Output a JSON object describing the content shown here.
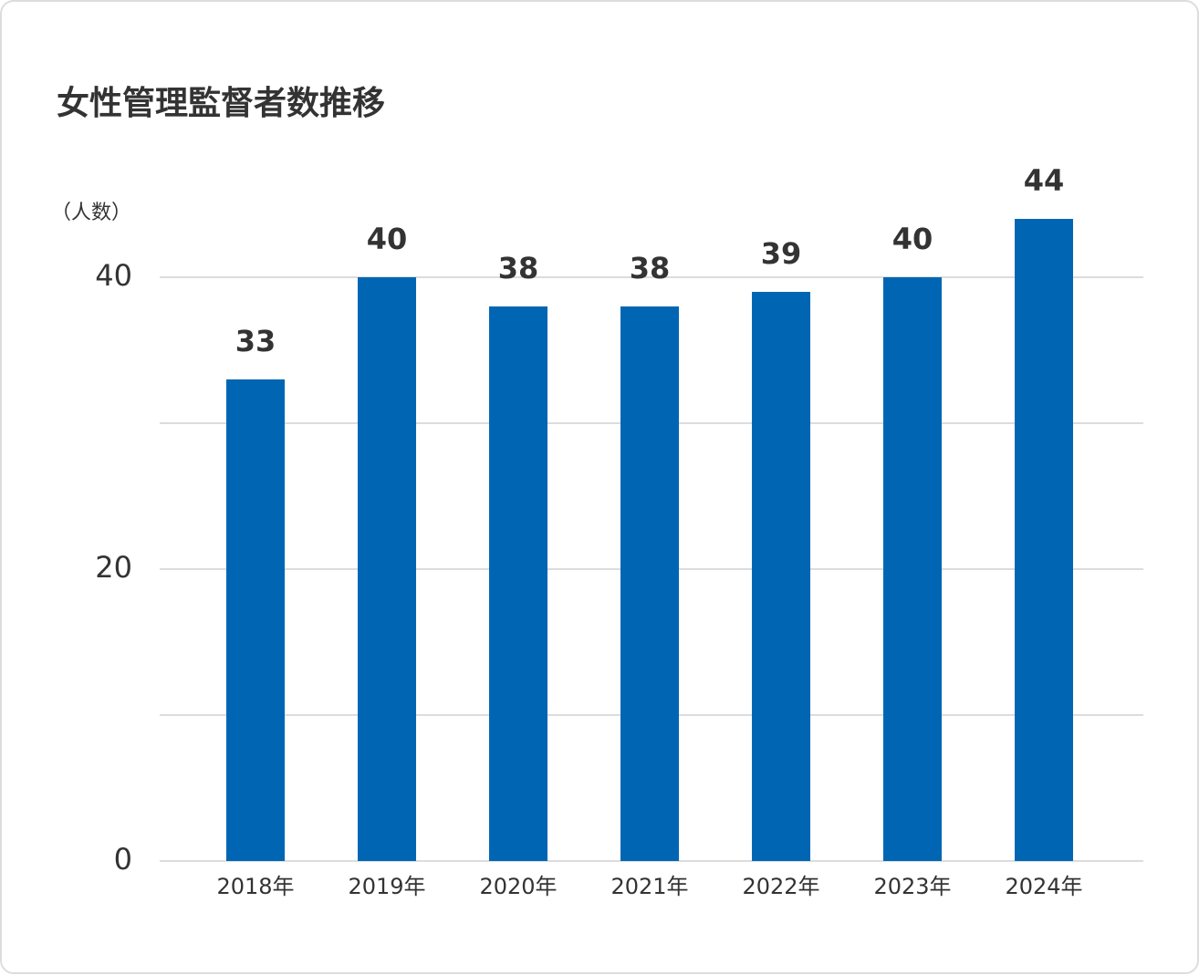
{
  "chart_data": {
    "type": "bar",
    "title": "女性管理監督者数推移",
    "y_axis_label": "（人数）",
    "categories": [
      "2018年",
      "2019年",
      "2020年",
      "2021年",
      "2022年",
      "2023年",
      "2024年"
    ],
    "values": [
      33,
      40,
      38,
      38,
      39,
      40,
      44
    ],
    "color": "#0066b3",
    "ylim": [
      0,
      45
    ],
    "yticks": [
      0,
      20,
      40
    ],
    "minor_yticks": [
      10,
      30
    ],
    "grid": true
  }
}
